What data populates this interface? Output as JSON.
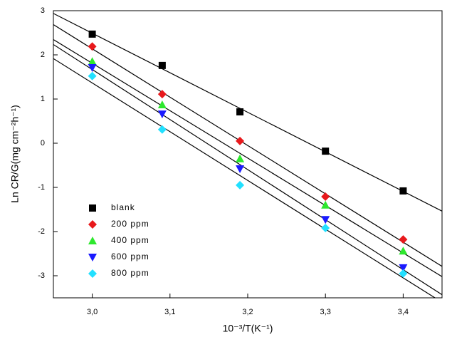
{
  "chart_data": {
    "type": "scatter",
    "x_label": "10⁻³/T(K⁻¹)",
    "y_label": "Ln CR/G(mg cm⁻²h⁻¹)",
    "xlim": [
      2.95,
      3.45
    ],
    "ylim": [
      -3.5,
      3
    ],
    "xticks": [
      {
        "value": 3.0,
        "label": "3,0"
      },
      {
        "value": 3.1,
        "label": "3,1"
      },
      {
        "value": 3.2,
        "label": "3,2"
      },
      {
        "value": 3.3,
        "label": "3,3"
      },
      {
        "value": 3.4,
        "label": "3,4"
      }
    ],
    "yticks": [
      -3,
      -2,
      -1,
      0,
      1,
      2,
      3
    ],
    "legend": "lower left",
    "fit_lines": true,
    "x": [
      3.0,
      3.09,
      3.19,
      3.3,
      3.4
    ],
    "series": [
      {
        "name": "blank",
        "color": "#000000",
        "marker": "square",
        "values": [
          2.47,
          1.76,
          0.71,
          -0.18,
          -1.08
        ]
      },
      {
        "name": "200 ppm",
        "color": "#e8191c",
        "marker": "diamond",
        "values": [
          2.19,
          1.11,
          0.05,
          -1.21,
          -2.18
        ]
      },
      {
        "name": "400 ppm",
        "color": "#2ee82e",
        "marker": "triangle-up",
        "values": [
          1.85,
          0.87,
          -0.35,
          -1.4,
          -2.44
        ]
      },
      {
        "name": "600 ppm",
        "color": "#1a1aff",
        "marker": "triangle-down",
        "values": [
          1.71,
          0.66,
          -0.58,
          -1.73,
          -2.82
        ]
      },
      {
        "name": "800 ppm",
        "color": "#22e0ff",
        "marker": "diamond",
        "values": [
          1.52,
          0.31,
          -0.95,
          -1.92,
          -2.95
        ]
      }
    ]
  }
}
